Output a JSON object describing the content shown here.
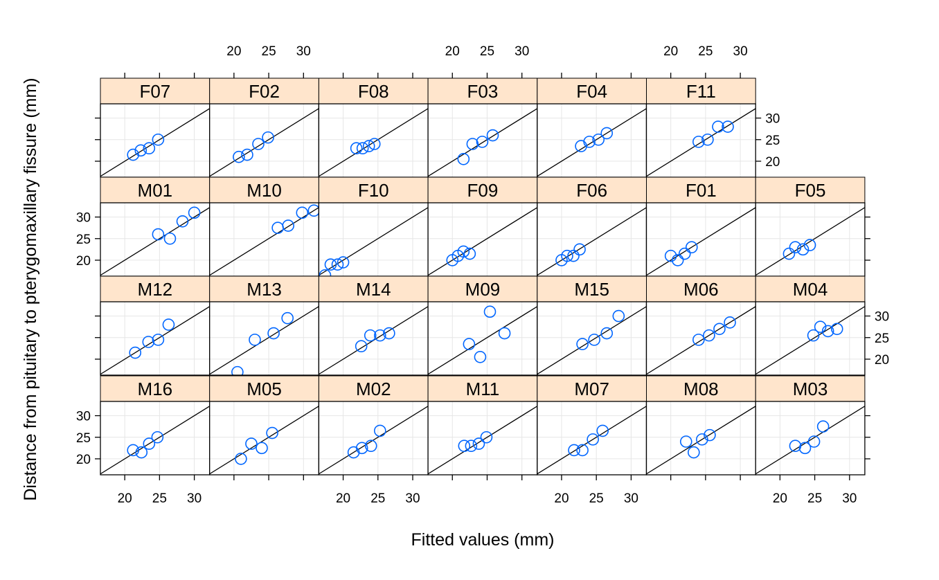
{
  "chart_data": {
    "type": "scatter",
    "layout": "trellis 7 columns x 4 rows",
    "xlabel": "Fitted values (mm)",
    "ylabel": "Distance from pituitary to pterygomaxillary fissure (mm)",
    "xlim": [
      16.5,
      32.2
    ],
    "ylim": [
      16.3,
      33.3
    ],
    "x_ticks": [
      20,
      25,
      30
    ],
    "y_ticks": [
      20,
      25,
      30
    ],
    "reference_line": "y = x",
    "grid": true,
    "point_color": "#0066ff",
    "strip_color": "#ffe5cc",
    "panels": [
      {
        "label": "F07",
        "row": 0,
        "col": 0,
        "points": [
          [
            21.2,
            21.5
          ],
          [
            22.3,
            22.5
          ],
          [
            23.5,
            23.0
          ],
          [
            24.8,
            25.0
          ]
        ]
      },
      {
        "label": "F02",
        "row": 0,
        "col": 1,
        "points": [
          [
            20.7,
            21.0
          ],
          [
            21.9,
            21.5
          ],
          [
            23.5,
            24.0
          ],
          [
            24.9,
            25.5
          ]
        ]
      },
      {
        "label": "F08",
        "row": 0,
        "col": 2,
        "points": [
          [
            21.9,
            23.0
          ],
          [
            22.8,
            23.0
          ],
          [
            23.7,
            23.5
          ],
          [
            24.5,
            24.0
          ]
        ]
      },
      {
        "label": "F03",
        "row": 0,
        "col": 3,
        "points": [
          [
            21.6,
            20.5
          ],
          [
            22.9,
            24.0
          ],
          [
            24.3,
            24.5
          ],
          [
            25.8,
            26.0
          ]
        ]
      },
      {
        "label": "F04",
        "row": 0,
        "col": 4,
        "points": [
          [
            22.8,
            23.5
          ],
          [
            24.0,
            24.5
          ],
          [
            25.3,
            25.0
          ],
          [
            26.5,
            26.5
          ]
        ]
      },
      {
        "label": "F11",
        "row": 0,
        "col": 5,
        "points": [
          [
            24.0,
            24.5
          ],
          [
            25.3,
            25.0
          ],
          [
            26.8,
            28.0
          ],
          [
            28.2,
            28.0
          ]
        ]
      },
      {
        "label": "M01",
        "row": 1,
        "col": 0,
        "points": [
          [
            24.8,
            26.0
          ],
          [
            26.5,
            25.0
          ],
          [
            28.3,
            29.0
          ],
          [
            30.0,
            31.0
          ]
        ]
      },
      {
        "label": "M10",
        "row": 1,
        "col": 1,
        "points": [
          [
            26.3,
            27.5
          ],
          [
            27.8,
            28.0
          ],
          [
            29.8,
            31.0
          ],
          [
            31.5,
            31.5
          ]
        ]
      },
      {
        "label": "F10",
        "row": 1,
        "col": 2,
        "points": [
          [
            17.4,
            16.5
          ],
          [
            18.2,
            19.0
          ],
          [
            19.2,
            19.0
          ],
          [
            20.0,
            19.5
          ]
        ]
      },
      {
        "label": "F09",
        "row": 1,
        "col": 3,
        "points": [
          [
            20.0,
            20.0
          ],
          [
            20.8,
            21.0
          ],
          [
            21.6,
            22.0
          ],
          [
            22.5,
            21.5
          ]
        ]
      },
      {
        "label": "F06",
        "row": 1,
        "col": 4,
        "points": [
          [
            20.0,
            20.0
          ],
          [
            20.8,
            21.0
          ],
          [
            21.7,
            21.0
          ],
          [
            22.6,
            22.5
          ]
        ]
      },
      {
        "label": "F01",
        "row": 1,
        "col": 5,
        "points": [
          [
            20.0,
            21.0
          ],
          [
            21.0,
            20.0
          ],
          [
            22.0,
            21.5
          ],
          [
            23.0,
            23.0
          ]
        ]
      },
      {
        "label": "F05",
        "row": 1,
        "col": 6,
        "points": [
          [
            21.3,
            21.5
          ],
          [
            22.2,
            23.0
          ],
          [
            23.3,
            22.5
          ],
          [
            24.3,
            23.5
          ]
        ]
      },
      {
        "label": "M12",
        "row": 2,
        "col": 0,
        "points": [
          [
            21.5,
            21.5
          ],
          [
            23.4,
            24.0
          ],
          [
            24.8,
            24.5
          ],
          [
            26.3,
            28.0
          ]
        ]
      },
      {
        "label": "M13",
        "row": 2,
        "col": 1,
        "points": [
          [
            20.5,
            17.0
          ],
          [
            23.0,
            24.5
          ],
          [
            25.7,
            26.0
          ],
          [
            27.7,
            29.5
          ]
        ]
      },
      {
        "label": "M14",
        "row": 2,
        "col": 2,
        "points": [
          [
            22.6,
            23.0
          ],
          [
            23.9,
            25.5
          ],
          [
            25.3,
            25.5
          ],
          [
            26.6,
            26.0
          ]
        ]
      },
      {
        "label": "M09",
        "row": 2,
        "col": 3,
        "points": [
          [
            22.4,
            23.5
          ],
          [
            24.0,
            20.5
          ],
          [
            25.4,
            31.0
          ],
          [
            27.5,
            26.0
          ]
        ]
      },
      {
        "label": "M15",
        "row": 2,
        "col": 4,
        "points": [
          [
            23.0,
            23.5
          ],
          [
            24.7,
            24.5
          ],
          [
            26.5,
            26.0
          ],
          [
            28.2,
            30.0
          ]
        ]
      },
      {
        "label": "M06",
        "row": 2,
        "col": 5,
        "points": [
          [
            24.0,
            24.5
          ],
          [
            25.5,
            25.5
          ],
          [
            27.0,
            27.0
          ],
          [
            28.5,
            28.5
          ]
        ]
      },
      {
        "label": "M04",
        "row": 2,
        "col": 6,
        "points": [
          [
            24.8,
            25.5
          ],
          [
            25.8,
            27.5
          ],
          [
            26.9,
            26.5
          ],
          [
            28.2,
            27.0
          ]
        ]
      },
      {
        "label": "M16",
        "row": 3,
        "col": 0,
        "points": [
          [
            21.2,
            22.0
          ],
          [
            22.4,
            21.5
          ],
          [
            23.5,
            23.5
          ],
          [
            24.7,
            25.0
          ]
        ]
      },
      {
        "label": "M05",
        "row": 3,
        "col": 1,
        "points": [
          [
            21.0,
            20.0
          ],
          [
            22.5,
            23.5
          ],
          [
            24.0,
            22.5
          ],
          [
            25.5,
            26.0
          ]
        ]
      },
      {
        "label": "M02",
        "row": 3,
        "col": 2,
        "points": [
          [
            21.5,
            21.5
          ],
          [
            22.7,
            22.5
          ],
          [
            24.0,
            23.0
          ],
          [
            25.3,
            26.5
          ]
        ]
      },
      {
        "label": "M11",
        "row": 3,
        "col": 3,
        "points": [
          [
            21.7,
            23.0
          ],
          [
            22.7,
            23.0
          ],
          [
            23.8,
            23.5
          ],
          [
            24.9,
            25.0
          ]
        ]
      },
      {
        "label": "M07",
        "row": 3,
        "col": 4,
        "points": [
          [
            21.8,
            22.0
          ],
          [
            23.0,
            22.0
          ],
          [
            24.5,
            24.5
          ],
          [
            25.9,
            26.5
          ]
        ]
      },
      {
        "label": "M08",
        "row": 3,
        "col": 5,
        "points": [
          [
            22.2,
            24.0
          ],
          [
            23.3,
            21.5
          ],
          [
            24.5,
            24.5
          ],
          [
            25.6,
            25.5
          ]
        ]
      },
      {
        "label": "M03",
        "row": 3,
        "col": 6,
        "points": [
          [
            22.2,
            23.0
          ],
          [
            23.6,
            22.5
          ],
          [
            24.9,
            24.0
          ],
          [
            26.2,
            27.5
          ]
        ]
      }
    ]
  }
}
